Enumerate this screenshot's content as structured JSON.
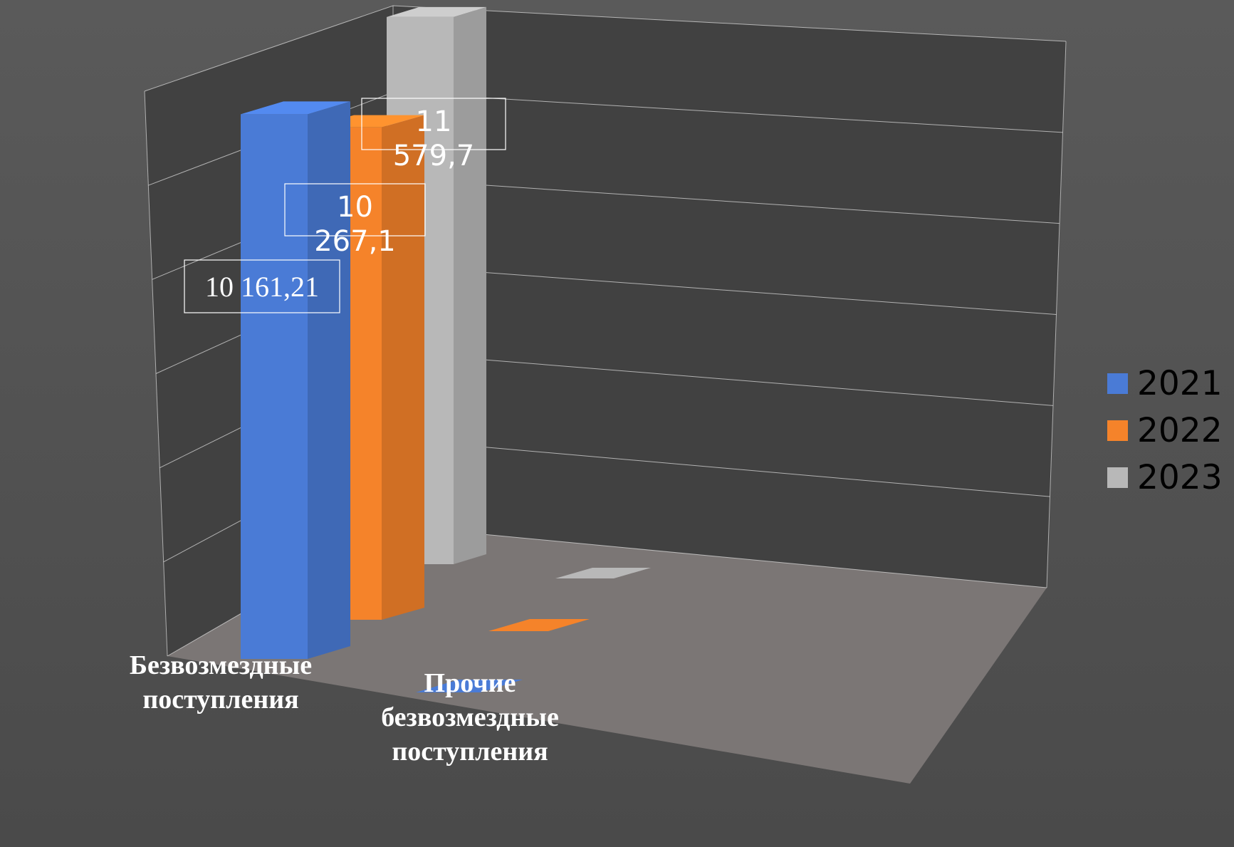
{
  "chart_data": {
    "type": "bar",
    "title": "",
    "xlabel": "",
    "ylabel": "",
    "categories": [
      "Безвозмездные поступления",
      "Прочие безвозмездные поступления"
    ],
    "category_labels": [
      "Безвозмездные\nпоступления",
      "Прочие\nбезвозмездные\nпоступления"
    ],
    "series": [
      {
        "name": "2021",
        "color": "#4a7bd6",
        "values": [
          10161.21,
          0
        ],
        "data_labels": [
          "10 161,21",
          ""
        ]
      },
      {
        "name": "2022",
        "color": "#f5832a",
        "values": [
          10267.1,
          0
        ],
        "data_labels": [
          "10 267,1",
          ""
        ]
      },
      {
        "name": "2023",
        "color": "#b8b8b8",
        "values": [
          11579.7,
          0
        ],
        "data_labels": [
          "11 579,7",
          ""
        ]
      }
    ],
    "ylim": [
      0,
      12000
    ],
    "grid": true,
    "legend_position": "right",
    "projection": "3d"
  },
  "colors": {
    "background": "#4a4a4a",
    "floor": "#7b7675",
    "gridline": "#d8d8d8",
    "data_label": "#ffffff"
  }
}
